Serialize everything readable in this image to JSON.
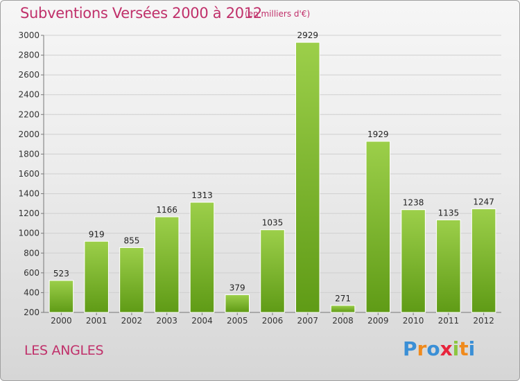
{
  "header": {
    "title": "Subventions Versées 2000 à 2012",
    "subtitle": "(en milliers d'€)"
  },
  "footer": {
    "commune": "LES ANGLES",
    "logo": {
      "letters": [
        "P",
        "r",
        "o",
        "x",
        "i",
        "t",
        "i"
      ],
      "colors": [
        "#3a8fd6",
        "#f08a1c",
        "#3a8fd6",
        "#e8243c",
        "#8cc63f",
        "#f08a1c",
        "#3a8fd6"
      ]
    }
  },
  "colors": {
    "title": "#c0306a",
    "bar_top": "#9ccf4a",
    "bar_bottom": "#5f9b16",
    "grid": "#cfcfcf"
  },
  "chart_data": {
    "type": "bar",
    "categories": [
      "2000",
      "2001",
      "2002",
      "2003",
      "2004",
      "2005",
      "2006",
      "2007",
      "2008",
      "2009",
      "2010",
      "2011",
      "2012"
    ],
    "values": [
      523,
      919,
      855,
      1166,
      1313,
      379,
      1035,
      2929,
      271,
      1929,
      1238,
      1135,
      1247
    ],
    "data_labels": [
      "523",
      "919",
      "855",
      "1166",
      "1313",
      "379",
      "1035",
      "2929",
      "271",
      "1929",
      "1238",
      "1135",
      "1247"
    ],
    "ylim": [
      200,
      3000
    ],
    "yticks": [
      200,
      400,
      600,
      800,
      1000,
      1200,
      1400,
      1600,
      1800,
      2000,
      2200,
      2400,
      2600,
      2800,
      3000
    ],
    "ytick_labels": [
      "200",
      "400",
      "600",
      "800",
      "1000",
      "1200",
      "1400",
      "1600",
      "1800",
      "2000",
      "2200",
      "2400",
      "2600",
      "2800",
      "3000"
    ],
    "grid": true,
    "xlabel": "",
    "ylabel": ""
  }
}
